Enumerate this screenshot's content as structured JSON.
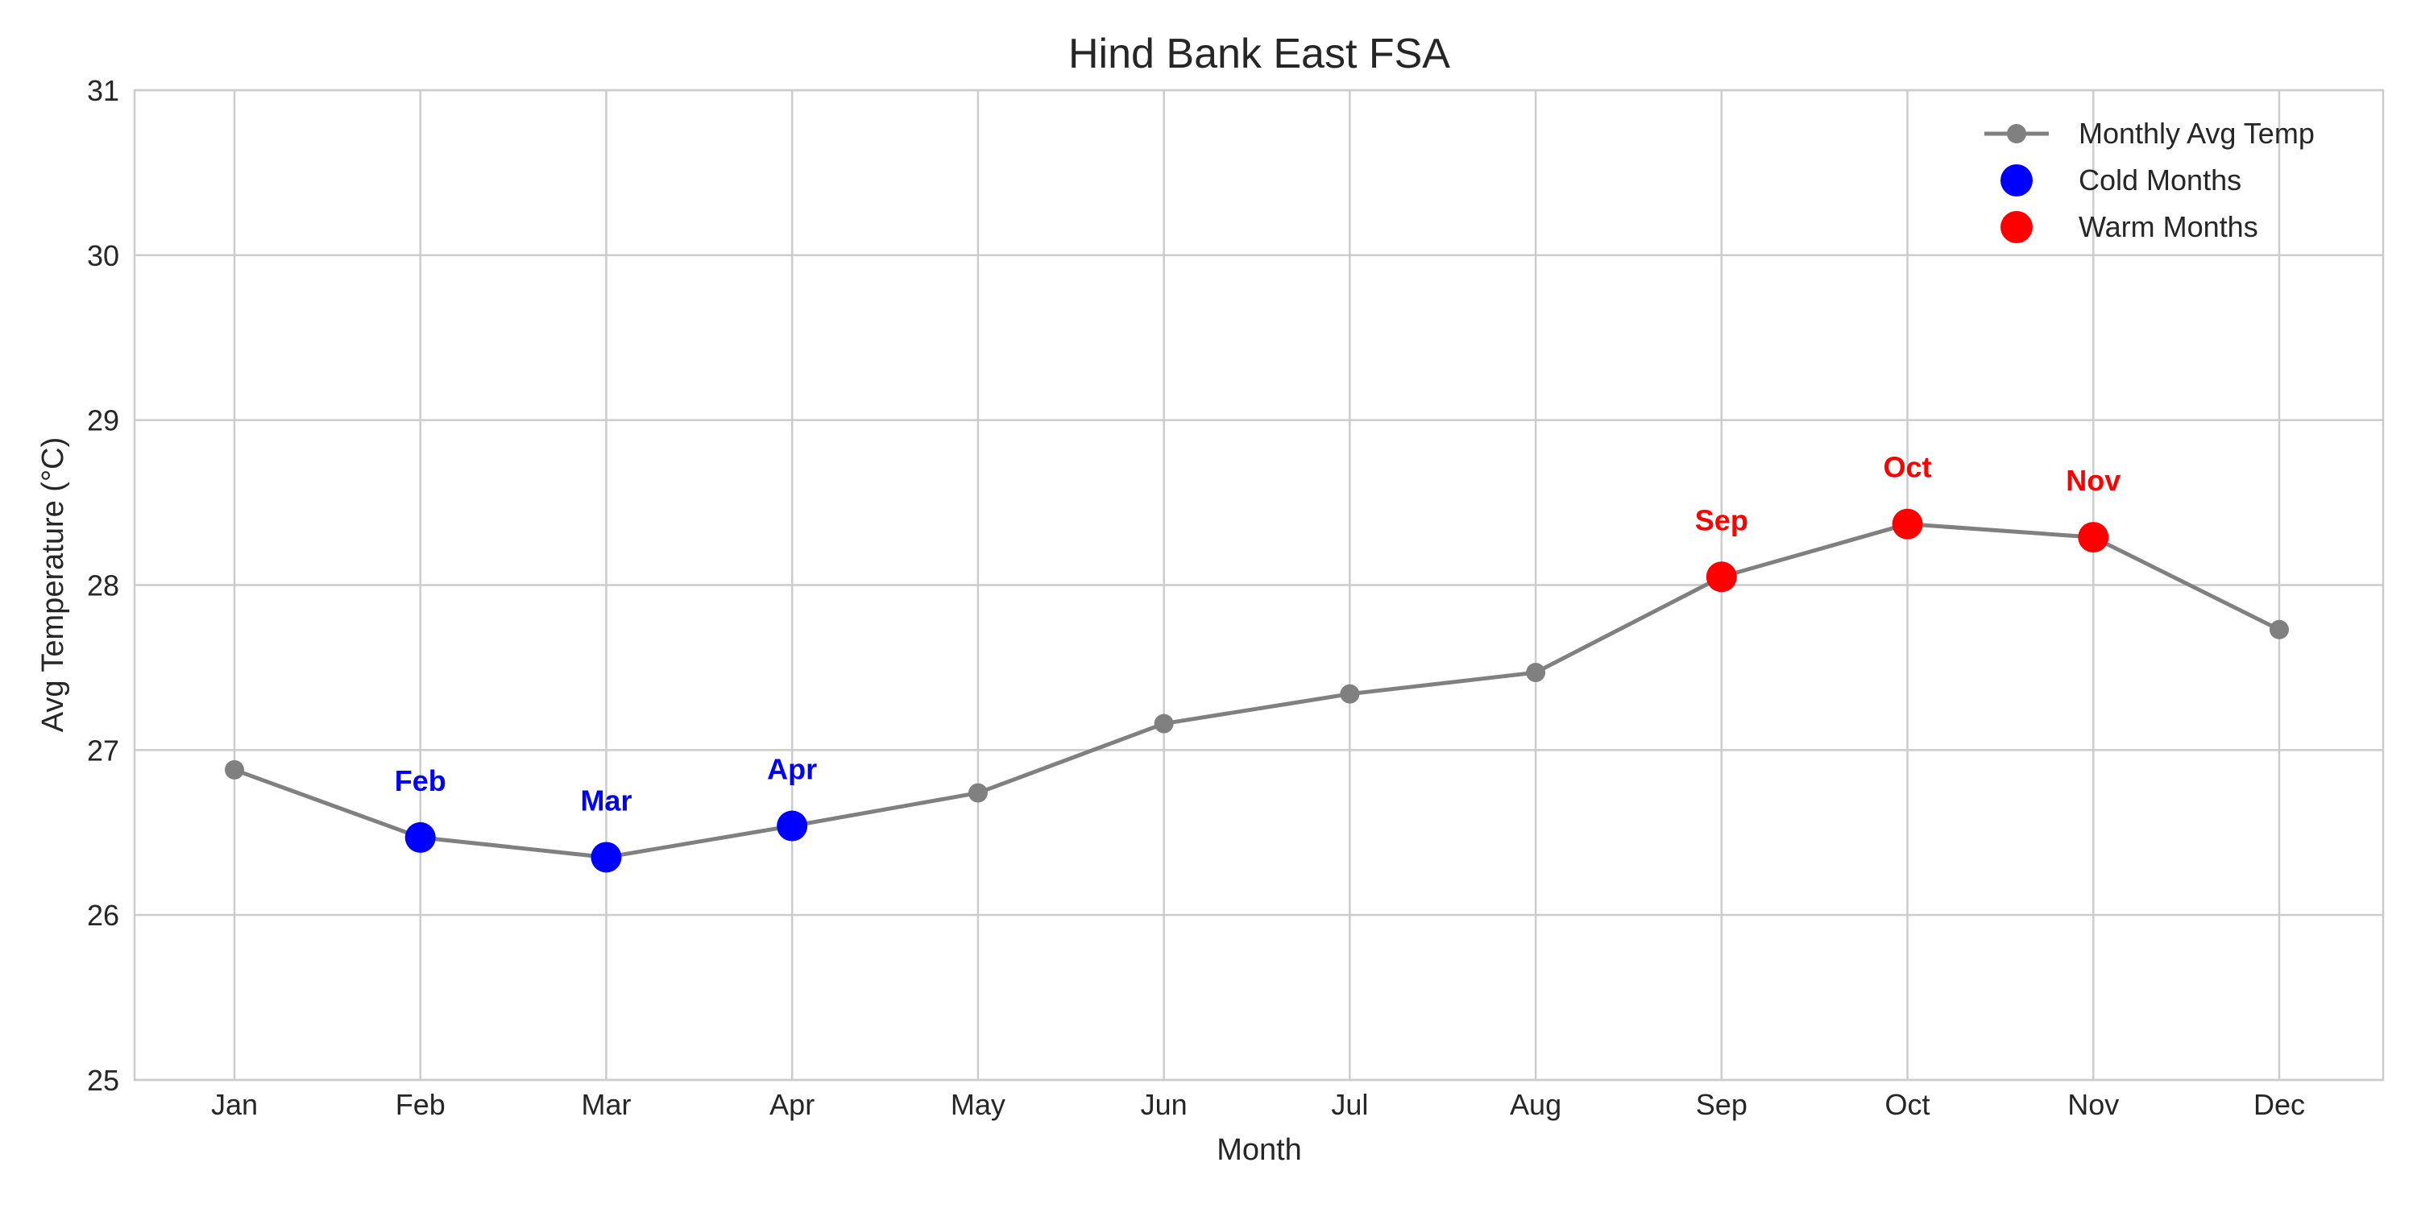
{
  "chart_data": {
    "type": "line",
    "title": "Hind Bank East FSA",
    "xlabel": "Month",
    "ylabel": "Avg Temperature (°C)",
    "categories": [
      "Jan",
      "Feb",
      "Mar",
      "Apr",
      "May",
      "Jun",
      "Jul",
      "Aug",
      "Sep",
      "Oct",
      "Nov",
      "Dec"
    ],
    "ylim": [
      25,
      31
    ],
    "yticks": [
      25,
      26,
      27,
      28,
      29,
      30,
      31
    ],
    "grid": true,
    "legend_position": "top-right",
    "series": [
      {
        "name": "Monthly Avg Temp",
        "values": [
          26.88,
          26.47,
          26.35,
          26.54,
          26.74,
          27.16,
          27.34,
          27.47,
          28.05,
          28.37,
          28.29,
          27.73
        ],
        "color": "#808080"
      }
    ],
    "highlights": [
      {
        "name": "Cold Months",
        "color": "#0000ff",
        "points": [
          {
            "month": "Feb",
            "value": 26.47,
            "label": "Feb"
          },
          {
            "month": "Mar",
            "value": 26.35,
            "label": "Mar"
          },
          {
            "month": "Apr",
            "value": 26.54,
            "label": "Apr"
          }
        ]
      },
      {
        "name": "Warm Months",
        "color": "#ff0000",
        "points": [
          {
            "month": "Sep",
            "value": 28.05,
            "label": "Sep"
          },
          {
            "month": "Oct",
            "value": 28.37,
            "label": "Oct"
          },
          {
            "month": "Nov",
            "value": 28.29,
            "label": "Nov"
          }
        ]
      }
    ]
  }
}
